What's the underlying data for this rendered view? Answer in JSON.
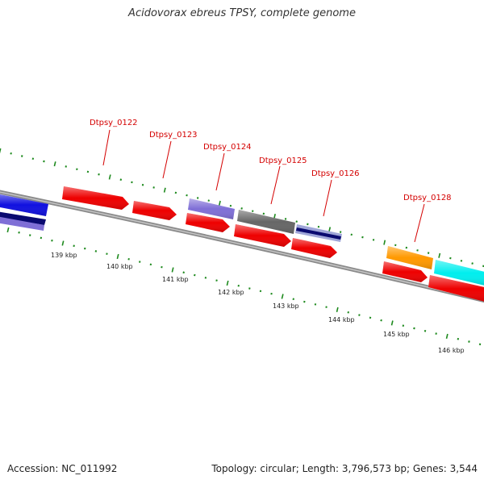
{
  "title": "Acidovorax ebreus TPSY, complete genome",
  "footer": {
    "accession": "Accession: NC_011992",
    "summary": "Topology: circular; Length: 3,796,573 bp; Genes: 3,544"
  },
  "kbp_labels": [
    "139 kbp",
    "140 kbp",
    "141 kbp",
    "142 kbp",
    "143 kbp",
    "144 kbp",
    "145 kbp",
    "146 kbp"
  ],
  "gene_labels": [
    "Dtpsy_0122",
    "Dtpsy_0123",
    "Dtpsy_0124",
    "Dtpsy_0125",
    "Dtpsy_0126",
    "Dtpsy_0128"
  ],
  "colors": {
    "label_red": "#d40000",
    "tick_green": "#1e8a1e",
    "gene_red": "#ee0000",
    "gene_blue": "#1010e0",
    "gene_navy": "#0a0a70",
    "gene_lavender": "#7f6fd6",
    "gene_gray": "#666666",
    "gene_orange": "#ff9900",
    "gene_cyan": "#00eeee",
    "backbone": "#8a8a8a"
  }
}
